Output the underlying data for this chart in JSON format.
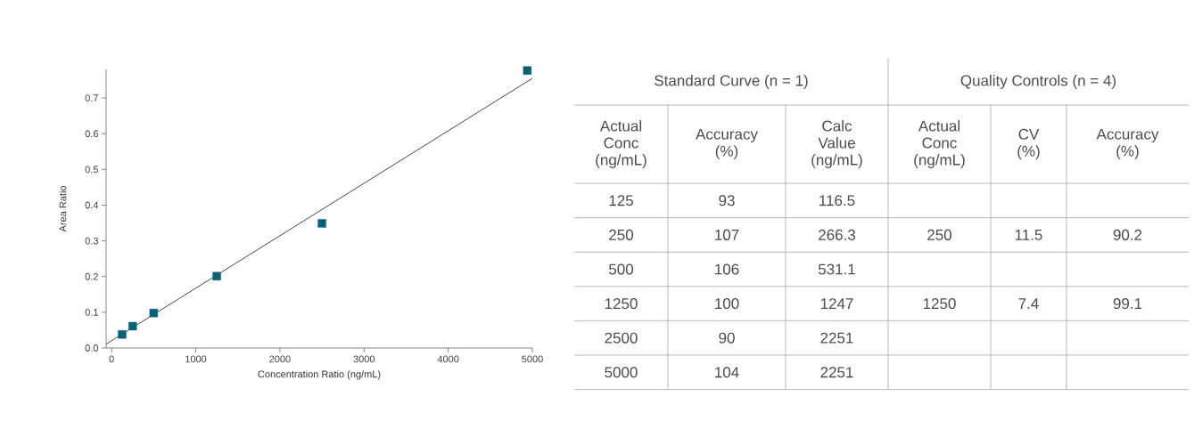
{
  "chart_data": [
    {
      "type": "scatter",
      "xlabel": "Concentration Ratio (ng/mL)",
      "ylabel": "Area Ratio",
      "xlim": [
        -65,
        5000
      ],
      "ylim": [
        0,
        0.78
      ],
      "xticks": [
        0,
        1000,
        2000,
        3000,
        4000,
        5000
      ],
      "yticks": [
        {
          "value": 0,
          "label": "0.0"
        },
        0.1,
        0.2,
        0.3,
        0.4,
        0.5,
        0.6,
        0.7
      ],
      "series": [
        {
          "type": "scatter",
          "marker": "square",
          "color": "#0b5f77",
          "x": [
            125,
            250,
            500,
            1250,
            2500,
            4940
          ],
          "values": [
            0.038,
            0.061,
            0.098,
            0.201,
            0.349,
            0.777
          ]
        },
        {
          "type": "line",
          "color": "#333333",
          "x": [
            -65,
            5000
          ],
          "values": [
            0.011,
            0.755
          ]
        }
      ]
    },
    {
      "type": "other",
      "annotations": [
        "Standard Curve (n = 1)",
        "Quality Controls (n = 4)"
      ],
      "categories": [
        "Actual Conc (ng/mL)",
        "Accuracy (%)",
        "Calc Value (ng/mL)",
        "Actual Conc (ng/mL)",
        "CV (%)",
        "Accuracy (%)"
      ],
      "cell_labels": [
        [
          "125",
          "93",
          "116.5",
          null,
          null,
          null
        ],
        [
          "250",
          "107",
          "266.3",
          "250",
          "11.5",
          "90.2"
        ],
        [
          "500",
          "106",
          "531.1",
          null,
          null,
          null
        ],
        [
          "1250",
          "100",
          "1247",
          "1250",
          "7.4",
          "99.1"
        ],
        [
          "2500",
          "90",
          "2251",
          null,
          null,
          null
        ],
        [
          "5000",
          "104",
          "2251",
          null,
          null,
          null
        ]
      ]
    }
  ]
}
